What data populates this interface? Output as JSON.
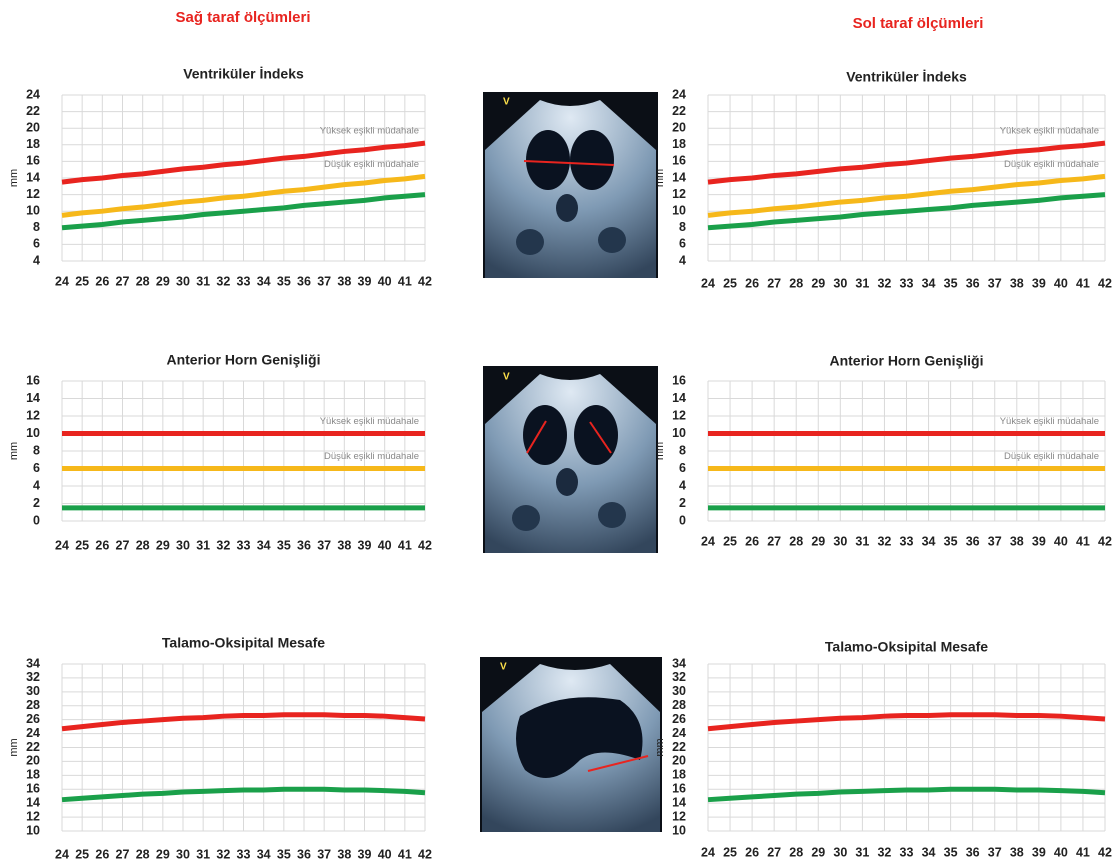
{
  "headers": {
    "right_side": "Sağ taraf ölçümleri",
    "left_side": "Sol taraf ölçümleri"
  },
  "images": [
    {
      "label": "V"
    },
    {
      "label": "V"
    },
    {
      "label": "V"
    }
  ],
  "chart_data": [
    {
      "type": "line",
      "title": "Ventriküler İndeks",
      "y_label": "mm",
      "x": [
        24,
        25,
        26,
        27,
        28,
        29,
        30,
        31,
        32,
        33,
        34,
        35,
        36,
        37,
        38,
        39,
        40,
        41,
        42
      ],
      "xlim": [
        24,
        42
      ],
      "xticks": [
        24,
        25,
        26,
        27,
        28,
        29,
        30,
        31,
        32,
        33,
        34,
        35,
        36,
        37,
        38,
        39,
        40,
        41,
        42
      ],
      "ylim": [
        4,
        24
      ],
      "yticks": [
        4,
        6,
        8,
        10,
        12,
        14,
        16,
        18,
        20,
        22,
        24
      ],
      "grid": true,
      "series": [
        {
          "color": "#e8241f",
          "annotation": "Yüksek eşikli müdahale",
          "values": [
            13.5,
            13.8,
            14.0,
            14.3,
            14.5,
            14.8,
            15.1,
            15.3,
            15.6,
            15.8,
            16.1,
            16.4,
            16.6,
            16.9,
            17.2,
            17.4,
            17.7,
            17.9,
            18.2
          ]
        },
        {
          "color": "#f6b81a",
          "annotation": "Düşük eşikli müdahale",
          "values": [
            9.5,
            9.8,
            10.0,
            10.3,
            10.5,
            10.8,
            11.1,
            11.3,
            11.6,
            11.8,
            12.1,
            12.4,
            12.6,
            12.9,
            13.2,
            13.4,
            13.7,
            13.9,
            14.2
          ]
        },
        {
          "color": "#1aa04a",
          "values": [
            8.0,
            8.2,
            8.4,
            8.7,
            8.9,
            9.1,
            9.3,
            9.6,
            9.8,
            10.0,
            10.2,
            10.4,
            10.7,
            10.9,
            11.1,
            11.3,
            11.6,
            11.8,
            12.0
          ]
        }
      ]
    },
    {
      "type": "line",
      "title": "Ventriküler İndeks",
      "y_label": "mm",
      "x": [
        24,
        25,
        26,
        27,
        28,
        29,
        30,
        31,
        32,
        33,
        34,
        35,
        36,
        37,
        38,
        39,
        40,
        41,
        42
      ],
      "xlim": [
        24,
        42
      ],
      "xticks": [
        24,
        25,
        26,
        27,
        28,
        29,
        30,
        31,
        32,
        33,
        34,
        35,
        36,
        37,
        38,
        39,
        40,
        41,
        42
      ],
      "ylim": [
        4,
        24
      ],
      "yticks": [
        4,
        6,
        8,
        10,
        12,
        14,
        16,
        18,
        20,
        22,
        24
      ],
      "grid": true,
      "series": [
        {
          "color": "#e8241f",
          "annotation": "Yüksek eşikli müdahale",
          "values": [
            13.5,
            13.8,
            14.0,
            14.3,
            14.5,
            14.8,
            15.1,
            15.3,
            15.6,
            15.8,
            16.1,
            16.4,
            16.6,
            16.9,
            17.2,
            17.4,
            17.7,
            17.9,
            18.2
          ]
        },
        {
          "color": "#f6b81a",
          "annotation": "Düşük eşikli müdahale",
          "values": [
            9.5,
            9.8,
            10.0,
            10.3,
            10.5,
            10.8,
            11.1,
            11.3,
            11.6,
            11.8,
            12.1,
            12.4,
            12.6,
            12.9,
            13.2,
            13.4,
            13.7,
            13.9,
            14.2
          ]
        },
        {
          "color": "#1aa04a",
          "values": [
            8.0,
            8.2,
            8.4,
            8.7,
            8.9,
            9.1,
            9.3,
            9.6,
            9.8,
            10.0,
            10.2,
            10.4,
            10.7,
            10.9,
            11.1,
            11.3,
            11.6,
            11.8,
            12.0
          ]
        }
      ]
    },
    {
      "type": "line",
      "title": "Anterior Horn Genişliği",
      "y_label": "mm",
      "x": [
        24,
        25,
        26,
        27,
        28,
        29,
        30,
        31,
        32,
        33,
        34,
        35,
        36,
        37,
        38,
        39,
        40,
        41,
        42
      ],
      "xlim": [
        24,
        42
      ],
      "xticks": [
        24,
        25,
        26,
        27,
        28,
        29,
        30,
        31,
        32,
        33,
        34,
        35,
        36,
        37,
        38,
        39,
        40,
        41,
        42
      ],
      "ylim": [
        0,
        16
      ],
      "yticks": [
        0,
        2,
        4,
        6,
        8,
        10,
        12,
        14,
        16
      ],
      "grid": true,
      "series": [
        {
          "color": "#e8241f",
          "annotation": "Yüksek eşikli müdahale",
          "values": [
            10,
            10,
            10,
            10,
            10,
            10,
            10,
            10,
            10,
            10,
            10,
            10,
            10,
            10,
            10,
            10,
            10,
            10,
            10
          ]
        },
        {
          "color": "#f6b81a",
          "annotation": "Düşük eşikli müdahale",
          "values": [
            6,
            6,
            6,
            6,
            6,
            6,
            6,
            6,
            6,
            6,
            6,
            6,
            6,
            6,
            6,
            6,
            6,
            6,
            6
          ]
        },
        {
          "color": "#1aa04a",
          "values": [
            1.5,
            1.5,
            1.5,
            1.5,
            1.5,
            1.5,
            1.5,
            1.5,
            1.5,
            1.5,
            1.5,
            1.5,
            1.5,
            1.5,
            1.5,
            1.5,
            1.5,
            1.5,
            1.5
          ]
        }
      ]
    },
    {
      "type": "line",
      "title": "Anterior Horn Genişliği",
      "y_label": "mm",
      "x": [
        24,
        25,
        26,
        27,
        28,
        29,
        30,
        31,
        32,
        33,
        34,
        35,
        36,
        37,
        38,
        39,
        40,
        41,
        42
      ],
      "xlim": [
        24,
        42
      ],
      "xticks": [
        24,
        25,
        26,
        27,
        28,
        29,
        30,
        31,
        32,
        33,
        34,
        35,
        36,
        37,
        38,
        39,
        40,
        41,
        42
      ],
      "ylim": [
        0,
        16
      ],
      "yticks": [
        0,
        2,
        4,
        6,
        8,
        10,
        12,
        14,
        16
      ],
      "grid": true,
      "series": [
        {
          "color": "#e8241f",
          "annotation": "Yüksek eşikli müdahale",
          "values": [
            10,
            10,
            10,
            10,
            10,
            10,
            10,
            10,
            10,
            10,
            10,
            10,
            10,
            10,
            10,
            10,
            10,
            10,
            10
          ]
        },
        {
          "color": "#f6b81a",
          "annotation": "Düşük eşikli müdahale",
          "values": [
            6,
            6,
            6,
            6,
            6,
            6,
            6,
            6,
            6,
            6,
            6,
            6,
            6,
            6,
            6,
            6,
            6,
            6,
            6
          ]
        },
        {
          "color": "#1aa04a",
          "values": [
            1.5,
            1.5,
            1.5,
            1.5,
            1.5,
            1.5,
            1.5,
            1.5,
            1.5,
            1.5,
            1.5,
            1.5,
            1.5,
            1.5,
            1.5,
            1.5,
            1.5,
            1.5,
            1.5
          ]
        }
      ]
    },
    {
      "type": "line",
      "title": "Talamo-Oksipital Mesafe",
      "y_label": "mm",
      "x": [
        24,
        25,
        26,
        27,
        28,
        29,
        30,
        31,
        32,
        33,
        34,
        35,
        36,
        37,
        38,
        39,
        40,
        41,
        42
      ],
      "xlim": [
        24,
        42
      ],
      "xticks": [
        24,
        25,
        26,
        27,
        28,
        29,
        30,
        31,
        32,
        33,
        34,
        35,
        36,
        37,
        38,
        39,
        40,
        41,
        42
      ],
      "ylim": [
        10,
        34
      ],
      "yticks": [
        10,
        12,
        14,
        16,
        18,
        20,
        22,
        24,
        26,
        28,
        30,
        32,
        34
      ],
      "grid": true,
      "series": [
        {
          "color": "#e8241f",
          "values": [
            24.7,
            25.0,
            25.3,
            25.6,
            25.8,
            26.0,
            26.2,
            26.3,
            26.5,
            26.6,
            26.6,
            26.7,
            26.7,
            26.7,
            26.6,
            26.6,
            26.5,
            26.3,
            26.1
          ]
        },
        {
          "color": "#1aa04a",
          "values": [
            14.5,
            14.7,
            14.9,
            15.1,
            15.3,
            15.4,
            15.6,
            15.7,
            15.8,
            15.9,
            15.9,
            16.0,
            16.0,
            16.0,
            15.9,
            15.9,
            15.8,
            15.7,
            15.5
          ]
        }
      ]
    },
    {
      "type": "line",
      "title": "Talamo-Oksipital Mesafe",
      "y_label": "mm",
      "x": [
        24,
        25,
        26,
        27,
        28,
        29,
        30,
        31,
        32,
        33,
        34,
        35,
        36,
        37,
        38,
        39,
        40,
        41,
        42
      ],
      "xlim": [
        24,
        42
      ],
      "xticks": [
        24,
        25,
        26,
        27,
        28,
        29,
        30,
        31,
        32,
        33,
        34,
        35,
        36,
        37,
        38,
        39,
        40,
        41,
        42
      ],
      "ylim": [
        10,
        34
      ],
      "yticks": [
        10,
        12,
        14,
        16,
        18,
        20,
        22,
        24,
        26,
        28,
        30,
        32,
        34
      ],
      "grid": true,
      "series": [
        {
          "color": "#e8241f",
          "values": [
            24.7,
            25.0,
            25.3,
            25.6,
            25.8,
            26.0,
            26.2,
            26.3,
            26.5,
            26.6,
            26.6,
            26.7,
            26.7,
            26.7,
            26.6,
            26.6,
            26.5,
            26.3,
            26.1
          ]
        },
        {
          "color": "#1aa04a",
          "values": [
            14.5,
            14.7,
            14.9,
            15.1,
            15.3,
            15.4,
            15.6,
            15.7,
            15.8,
            15.9,
            15.9,
            16.0,
            16.0,
            16.0,
            15.9,
            15.9,
            15.8,
            15.7,
            15.5
          ]
        }
      ]
    }
  ]
}
